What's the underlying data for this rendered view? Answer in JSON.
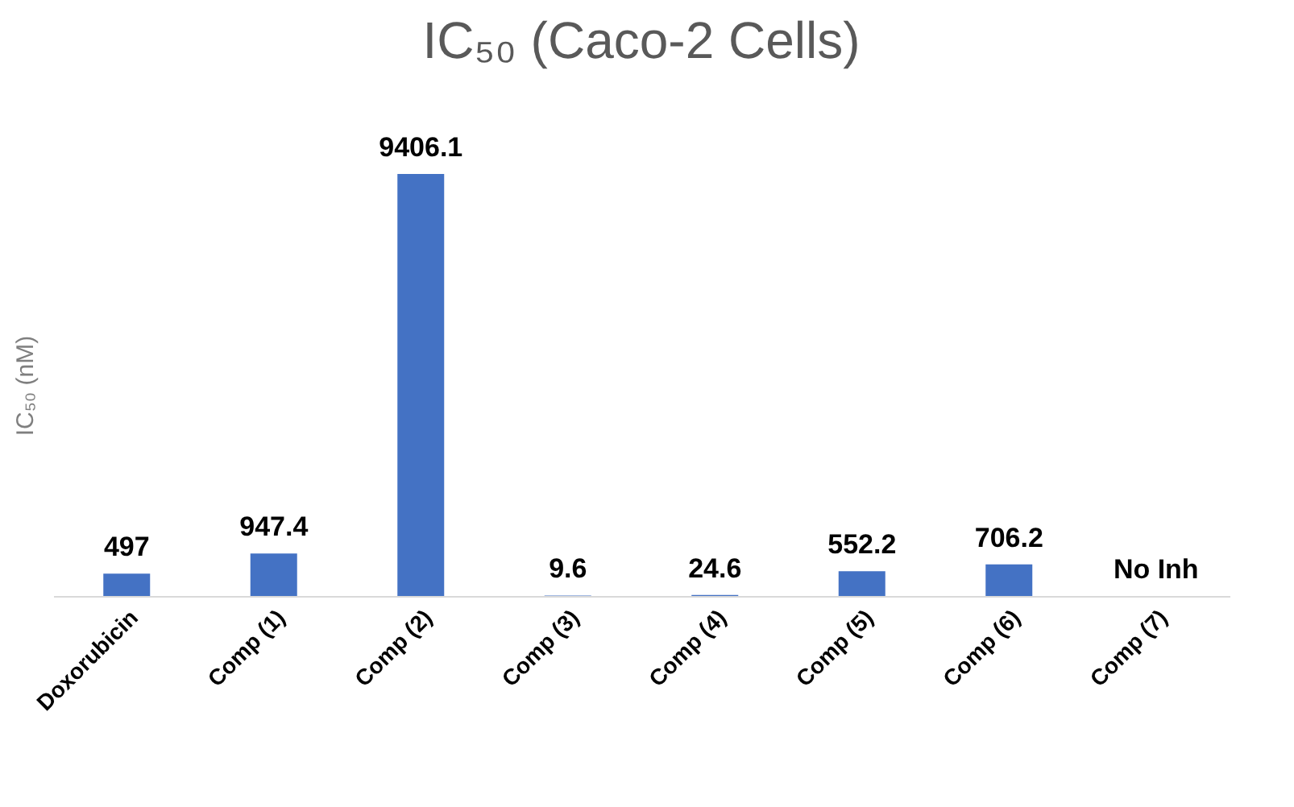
{
  "chart_data": {
    "type": "bar",
    "title": "IC₅₀ (Caco-2 Cells)",
    "ylabel": "IC₅₀ (nM)",
    "categories": [
      "Doxorubicin",
      "Comp (1)",
      "Comp (2)",
      "Comp  (3)",
      "Comp  (4)",
      "Comp  (5)",
      "Comp  (6)",
      "Comp (7)"
    ],
    "values": [
      497,
      947.4,
      9406.1,
      9.6,
      24.6,
      552.2,
      706.2,
      null
    ],
    "value_labels": [
      "497",
      "947.4",
      "9406.1",
      "9.6",
      "24.6",
      "552.2",
      "706.2",
      "No Inh"
    ],
    "color": "#4472c4",
    "grid": false
  }
}
